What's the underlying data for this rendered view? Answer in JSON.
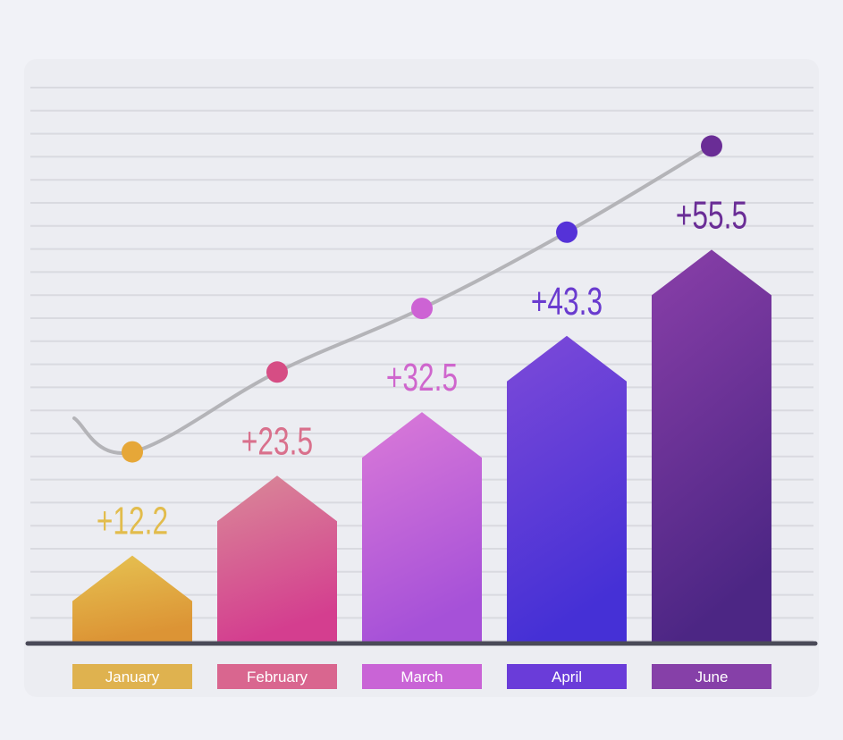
{
  "chart_data": {
    "type": "bar",
    "categories": [
      "January",
      "February",
      "March",
      "April",
      "June"
    ],
    "values": [
      12.2,
      23.5,
      32.5,
      43.3,
      55.5
    ],
    "value_labels": [
      "+12.2",
      "+23.5",
      "+32.5",
      "+43.3",
      "+55.5"
    ],
    "ylim": [
      0,
      62
    ],
    "grid": true,
    "trend_line": true,
    "title": "",
    "xlabel": "",
    "ylabel": ""
  },
  "colors": {
    "background": "#f1f2f7",
    "panel": "#ecedf2",
    "gridline": "#d9dae0",
    "axis": "#4a4a58",
    "trend_line": "#b4b4b8",
    "bars": [
      {
        "top": "#e6c352",
        "bottom": "#dc9435",
        "label": "#dfb24f",
        "value_text": "#e2bc4c",
        "dot": "#e6a738"
      },
      {
        "top": "#d98a98",
        "bottom": "#d43e8f",
        "label": "#d9668f",
        "value_text": "#d9708c",
        "dot": "#d64d84"
      },
      {
        "top": "#db7ad8",
        "bottom": "#a651d8",
        "label": "#c964d6",
        "value_text": "#cf66cd",
        "dot": "#cd63d4"
      },
      {
        "top": "#7d4ad8",
        "bottom": "#4530d6",
        "label": "#6a3cd9",
        "value_text": "#6a3bcf",
        "dot": "#5532d8"
      },
      {
        "top": "#8a3fa9",
        "bottom": "#4c2684",
        "label": "#8640a8",
        "value_text": "#6a2d96",
        "dot": "#6a2d96"
      }
    ]
  }
}
